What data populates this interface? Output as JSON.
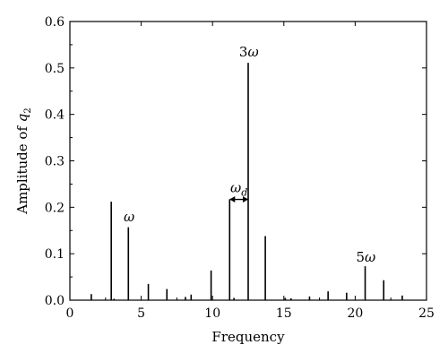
{
  "chart_data": {
    "type": "bar",
    "title": "",
    "xlabel": "Frequency",
    "ylabel_prefix": "Amplitude of ",
    "ylabel_var": "q",
    "ylabel_sub": "2",
    "xlim": [
      0,
      25
    ],
    "ylim": [
      0,
      0.6
    ],
    "xticks": [
      0,
      5,
      10,
      15,
      20,
      25
    ],
    "yticks": [
      0.0,
      0.1,
      0.2,
      0.3,
      0.4,
      0.5,
      0.6
    ],
    "ytick_labels": [
      "0.0",
      "0.1",
      "0.2",
      "0.3",
      "0.4",
      "0.5",
      "0.6"
    ],
    "grid": false,
    "legend": "none",
    "peaks": [
      {
        "x": 1.5,
        "y": 0.013
      },
      {
        "x": 2.9,
        "y": 0.212
      },
      {
        "x": 3.1,
        "y": 0.003
      },
      {
        "x": 4.1,
        "y": 0.157
      },
      {
        "x": 5.5,
        "y": 0.035
      },
      {
        "x": 6.8,
        "y": 0.024
      },
      {
        "x": 8.1,
        "y": 0.007
      },
      {
        "x": 8.5,
        "y": 0.012
      },
      {
        "x": 9.9,
        "y": 0.064
      },
      {
        "x": 11.2,
        "y": 0.217
      },
      {
        "x": 11.5,
        "y": 0.005
      },
      {
        "x": 12.5,
        "y": 0.511
      },
      {
        "x": 13.7,
        "y": 0.138
      },
      {
        "x": 15.1,
        "y": 0.005
      },
      {
        "x": 15.5,
        "y": 0.004
      },
      {
        "x": 16.8,
        "y": 0.008
      },
      {
        "x": 18.1,
        "y": 0.019
      },
      {
        "x": 19.4,
        "y": 0.016
      },
      {
        "x": 20.7,
        "y": 0.073
      },
      {
        "x": 22.0,
        "y": 0.043
      },
      {
        "x": 23.3,
        "y": 0.01
      }
    ],
    "annotations": [
      {
        "text": "3",
        "greek": "ω",
        "x": 12.55,
        "y": 0.525
      },
      {
        "text": "",
        "greek": "ω",
        "x": 4.15,
        "y": 0.17
      },
      {
        "text": "5",
        "greek": "ω",
        "x": 20.75,
        "y": 0.083
      }
    ],
    "bracket": {
      "label": "ω",
      "label_sub": "d",
      "x1": 11.2,
      "x2": 12.5,
      "y": 0.217
    }
  }
}
